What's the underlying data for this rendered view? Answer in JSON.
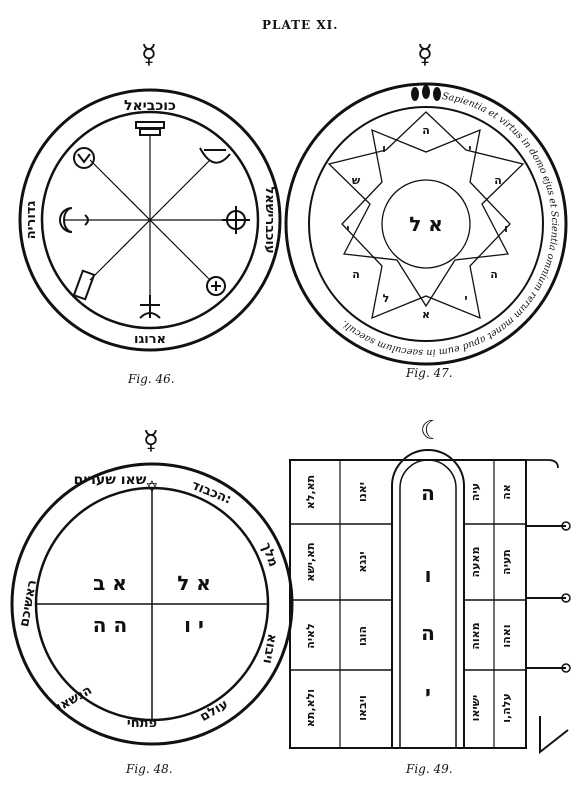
{
  "plate_title": "PLATE XI.",
  "figures": {
    "fig46": {
      "caption": "Fig. 46.",
      "planet_symbol": "☿",
      "top_name": "כוכביאל",
      "left_name": "גדוריה",
      "right_name": "עוכברישאל",
      "bottom_name": "ארוגו"
    },
    "fig47": {
      "caption": "Fig. 47.",
      "planet_symbol": "☿",
      "latin_legend": "Sapientia et virtus in domo ejus et Scientia omnium rerum manet apud eum in saeculum saeculi.",
      "center_text": "א ל",
      "star_letters": [
        "ה",
        "י",
        "ה",
        "ו",
        "ה",
        "י",
        "א",
        "ל",
        "ה",
        "י",
        "ש",
        "ו"
      ]
    },
    "fig48": {
      "caption": "Fig. 48.",
      "planet_symbol": "☿",
      "rim_top_right": "הכבוד:",
      "rim_top": "שאו שערים",
      "rim_left": "ראשיכם",
      "rim_right": "מלך",
      "rim_bottom_left": "הנשאו",
      "rim_bottom": "פתחי",
      "rim_bottom_right": "עולם",
      "rim_right_lower": "ויבוא",
      "quadrants": [
        "א ב",
        "א ל",
        "ה ה",
        "י ו"
      ],
      "star_symbol": "✡"
    },
    "fig49": {
      "caption": "Fig. 49.",
      "moon_symbol": "☾",
      "column_letters": [
        "ה",
        "ו",
        "ה",
        "י"
      ],
      "left_cells": [
        "תא,לא",
        "תא,ישא",
        "לאיה",
        "ולא,תא"
      ],
      "mid_left_cells": [
        "יאנו",
        "ינגא",
        "הוגו",
        "ויבאו"
      ],
      "mid_right_cells": [
        "עיה",
        "מאעה",
        "מאוה",
        "ישיאו"
      ],
      "right_cells": [
        "אה",
        "תעיה",
        "ואהו",
        "עלה,ו"
      ]
    }
  }
}
